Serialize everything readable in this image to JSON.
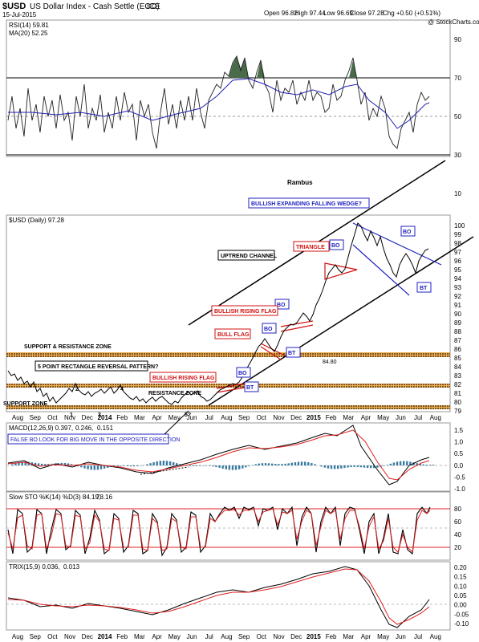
{
  "header": {
    "symbol": "$USD",
    "name": "US Dollar Index - Cash Settle (EOD)",
    "exchange": "ICE",
    "date": "15-Jul-2015",
    "open": "Open 96.82",
    "high": "High 97.44",
    "low": "Low 96.69",
    "close": "Close 97.28",
    "chg": "Chg +0.50 (+0.51%)",
    "watermark": "@ StockCharts.com"
  },
  "colors": {
    "price": "#000000",
    "ma": "#1f1fb0",
    "signal": "#e02020",
    "rsi_fill": "#4a6b4a",
    "hist": "#3a7ca0",
    "blue_ann": "#2020c0",
    "red_ann": "#d01010",
    "zone": "#f0a030"
  },
  "months": [
    "Aug",
    "Sep",
    "Oct",
    "Nov",
    "Dec",
    "2014",
    "Feb",
    "Mar",
    "Apr",
    "May",
    "Jun",
    "Jul",
    "Aug",
    "Sep",
    "Oct",
    "Nov",
    "Dec",
    "2015",
    "Feb",
    "Mar",
    "Apr",
    "May",
    "Jun",
    "Jul",
    "Aug"
  ],
  "panels": {
    "rsi": {
      "label": "RSI(14) 59.81",
      "ma_label": "MA(20) 52.25",
      "ticks": [
        "90",
        "70",
        "50",
        "30",
        "10"
      ],
      "rambus": "Rambus"
    },
    "price": {
      "label": "$USD (Daily) 97.28",
      "ticks": [
        "100",
        "99",
        "98",
        "97",
        "96",
        "95",
        "94",
        "93",
        "92",
        "91",
        "90",
        "89",
        "88",
        "87",
        "86",
        "85",
        "84",
        "83",
        "82",
        "81",
        "80",
        "79"
      ]
    },
    "macd": {
      "label_a": "MACD(12,26,9) 0.397,",
      "label_b": "0.246,",
      "label_c": "0.151",
      "ticks": [
        "1.5",
        "1.0",
        "0.5",
        "0.0",
        "-0.5",
        "-1.0"
      ]
    },
    "sto": {
      "label_a": "Slow STO %K(14) %D(3) 84.19,",
      "label_b": "78.16",
      "ticks": [
        "80",
        "60",
        "40",
        "20"
      ]
    },
    "trix": {
      "label_a": "TRIX(15,9) 0.036,",
      "label_b": "0.013",
      "ticks": [
        "0.20",
        "0.15",
        "0.10",
        "0.05",
        "0.00",
        "-0.05",
        "-0.10"
      ]
    }
  },
  "annotations": {
    "wedge": "BULLISH EXPANDING FALLING WEDGE?",
    "uptrend": "UPTREND CHANNEL",
    "triangle": "TRIANGLE",
    "bull_rising_flag1": "BULLISH RISING FLAG",
    "bull_flag": "BULL FLAG",
    "bull_rising_flag2": "BULLISH RISING FLAG",
    "sr_zone": "SUPPORT & RESISTANCE ZONE",
    "five_point": "5 POINT RECTANGLE REVERSAL PATTERN?",
    "resistance_zone": "RESISTANCE ZONE",
    "support_zone": "SUPPORT ZONE",
    "false_bo": "FALSE BO LOOK FOR BIG MOVE IN THE OPPOSITE DIRECTION",
    "level_8480": "84.80",
    "bo": "BO",
    "bt": "BT",
    "p1": "1",
    "p2": "2",
    "p3": "3",
    "p4": "4",
    "p5": "5?"
  },
  "chart_data": {
    "type": "line",
    "title": "$USD US Dollar Index - Cash Settle (EOD) ICE",
    "x_range": [
      "2013-08",
      "2015-08"
    ],
    "series": [
      {
        "name": "$USD (Daily)",
        "points": [
          [
            0,
            82.2
          ],
          [
            0.5,
            81.3
          ],
          [
            1,
            81.6
          ],
          [
            1.5,
            80.5
          ],
          [
            2,
            79.8
          ],
          [
            2.5,
            80.3
          ],
          [
            3,
            81.0
          ],
          [
            3.5,
            80.6
          ],
          [
            4,
            80.2
          ],
          [
            4.5,
            80.8
          ],
          [
            5,
            81.1
          ],
          [
            5.5,
            80.3
          ],
          [
            6,
            80.6
          ],
          [
            6.5,
            80.0
          ],
          [
            7,
            79.9
          ],
          [
            7.5,
            80.2
          ],
          [
            8,
            79.5
          ],
          [
            8.5,
            80.1
          ],
          [
            9,
            80.0
          ],
          [
            9.5,
            80.8
          ],
          [
            10,
            80.7
          ],
          [
            10.5,
            80.1
          ],
          [
            11,
            80.6
          ],
          [
            11.5,
            81.0
          ],
          [
            12,
            81.8
          ],
          [
            12.5,
            82.9
          ],
          [
            13,
            84.0
          ],
          [
            13.5,
            85.5
          ],
          [
            14,
            86.2
          ],
          [
            14.5,
            85.6
          ],
          [
            15,
            87.5
          ],
          [
            15.5,
            88.2
          ],
          [
            16,
            88.8
          ],
          [
            16.5,
            89.5
          ],
          [
            17,
            91.5
          ],
          [
            17.5,
            94.0
          ],
          [
            18,
            95.0
          ],
          [
            18.5,
            95.2
          ],
          [
            19,
            96.0
          ],
          [
            19.5,
            98.5
          ],
          [
            20,
            99.5
          ],
          [
            20.5,
            97.5
          ],
          [
            21,
            95.8
          ],
          [
            21.5,
            94.8
          ],
          [
            22,
            94.0
          ],
          [
            22.5,
            95.5
          ],
          [
            23,
            96.5
          ],
          [
            23.5,
            96.0
          ],
          [
            23.8,
            97.28
          ]
        ]
      },
      {
        "name": "RSI(14)",
        "points": [
          [
            0,
            45
          ],
          [
            1,
            55
          ],
          [
            2,
            40
          ],
          [
            3,
            60
          ],
          [
            4,
            50
          ],
          [
            5,
            58
          ],
          [
            6,
            42
          ],
          [
            7,
            48
          ],
          [
            8,
            55
          ],
          [
            9,
            40
          ],
          [
            10,
            45
          ],
          [
            11,
            52
          ],
          [
            12,
            65
          ],
          [
            13,
            75
          ],
          [
            14,
            70
          ],
          [
            15,
            65
          ],
          [
            16,
            72
          ],
          [
            17,
            70
          ],
          [
            18,
            62
          ],
          [
            19,
            75
          ],
          [
            20,
            55
          ],
          [
            21,
            48
          ],
          [
            22,
            35
          ],
          [
            22.5,
            40
          ],
          [
            23,
            52
          ],
          [
            23.8,
            59.81
          ]
        ]
      },
      {
        "name": "MACD(12,26,9)",
        "points": [
          [
            0,
            0.1
          ],
          [
            2,
            -0.1
          ],
          [
            4,
            0.05
          ],
          [
            6,
            -0.05
          ],
          [
            8,
            -0.15
          ],
          [
            10,
            -0.1
          ],
          [
            11,
            0.05
          ],
          [
            12,
            0.3
          ],
          [
            13,
            0.6
          ],
          [
            14,
            0.5
          ],
          [
            15,
            0.6
          ],
          [
            16,
            0.7
          ],
          [
            17,
            0.9
          ],
          [
            18,
            0.8
          ],
          [
            19,
            1.2
          ],
          [
            20,
            0.5
          ],
          [
            21,
            -0.3
          ],
          [
            22,
            -0.7
          ],
          [
            23,
            0.0
          ],
          [
            23.8,
            0.397
          ]
        ]
      },
      {
        "name": "Slow STO %K(14)",
        "points": [
          [
            0,
            80
          ],
          [
            1,
            30
          ],
          [
            2,
            75
          ],
          [
            3,
            25
          ],
          [
            4,
            70
          ],
          [
            5,
            40
          ],
          [
            6,
            80
          ],
          [
            7,
            30
          ],
          [
            8,
            75
          ],
          [
            9,
            35
          ],
          [
            10,
            70
          ],
          [
            11,
            60
          ],
          [
            12,
            85
          ],
          [
            13,
            80
          ],
          [
            14,
            60
          ],
          [
            15,
            85
          ],
          [
            16,
            80
          ],
          [
            17,
            85
          ],
          [
            18,
            60
          ],
          [
            19,
            85
          ],
          [
            20,
            30
          ],
          [
            21,
            70
          ],
          [
            22,
            20
          ],
          [
            23,
            80
          ],
          [
            23.8,
            84.19
          ]
        ]
      },
      {
        "name": "TRIX(15,9)",
        "points": [
          [
            0,
            0.01
          ],
          [
            2,
            -0.01
          ],
          [
            4,
            0.0
          ],
          [
            6,
            -0.01
          ],
          [
            8,
            -0.02
          ],
          [
            10,
            -0.01
          ],
          [
            11,
            0.02
          ],
          [
            12,
            0.05
          ],
          [
            13,
            0.08
          ],
          [
            14,
            0.09
          ],
          [
            15,
            0.1
          ],
          [
            16,
            0.12
          ],
          [
            17,
            0.16
          ],
          [
            18,
            0.17
          ],
          [
            19,
            0.18
          ],
          [
            20,
            0.1
          ],
          [
            21,
            0.0
          ],
          [
            22,
            -0.09
          ],
          [
            23,
            -0.03
          ],
          [
            23.8,
            0.036
          ]
        ]
      }
    ]
  }
}
